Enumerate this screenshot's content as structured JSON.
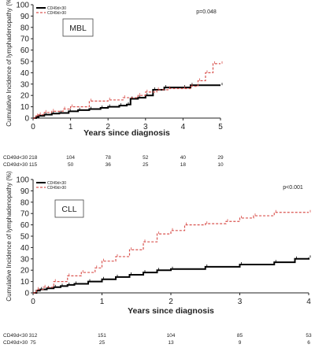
{
  "chart_data": [
    {
      "type": "line",
      "step": true,
      "panel_label": "MBL",
      "p_value": "p=0.048",
      "xlabel": "Years since diagnosis",
      "ylabel": "Cumulative Incidence of lymphadenopathy (%)",
      "xlim": [
        0,
        5
      ],
      "ylim": [
        0,
        100
      ],
      "xticks": [
        "0",
        "1",
        "2",
        "3",
        "4",
        "5"
      ],
      "yticks": [
        "0",
        "10",
        "20",
        "30",
        "40",
        "50",
        "60",
        "70",
        "80",
        "90",
        "100"
      ],
      "legend_position": "top-left",
      "grid": false,
      "series": [
        {
          "name": "CD49d<30",
          "color": "#000000",
          "style": "solid",
          "x": [
            0,
            0.08,
            0.15,
            0.3,
            0.5,
            0.7,
            0.95,
            1.2,
            1.5,
            1.8,
            2.0,
            2.3,
            2.5,
            2.6,
            2.8,
            3.0,
            3.2,
            3.5,
            4.0,
            4.2,
            5.0
          ],
          "y": [
            0,
            1,
            2,
            3,
            4,
            4.5,
            6,
            7,
            8,
            9,
            10,
            11,
            12,
            17,
            18,
            20,
            25,
            27,
            27,
            29,
            29
          ]
        },
        {
          "name": "CD49d>30",
          "color": "#d9534f",
          "style": "dashed",
          "x": [
            0,
            0.08,
            0.15,
            0.3,
            0.5,
            0.8,
            1.0,
            1.5,
            2.0,
            2.4,
            2.8,
            3.0,
            3.3,
            3.6,
            4.0,
            4.2,
            4.4,
            4.6,
            4.8,
            5.0
          ],
          "y": [
            0,
            2,
            3,
            5,
            6,
            8,
            10,
            15,
            16,
            18,
            20,
            23,
            25,
            26,
            26,
            28,
            33,
            40,
            48,
            48
          ]
        }
      ],
      "risk_table": [
        {
          "label": "CD49d<30",
          "values": [
            "218",
            "104",
            "78",
            "52",
            "40",
            "29"
          ]
        },
        {
          "label": "CD49d>30",
          "values": [
            "115",
            "50",
            "36",
            "25",
            "18",
            "10"
          ]
        }
      ]
    },
    {
      "type": "line",
      "step": true,
      "panel_label": "CLL",
      "p_value": "p<0.001",
      "xlabel": "Years since diagnosis",
      "ylabel": "Cumulative Incidence of lymphadenopathy (%)",
      "xlim": [
        0,
        4
      ],
      "ylim": [
        0,
        100
      ],
      "xticks": [
        "0",
        "1",
        "2",
        "3",
        "4"
      ],
      "yticks": [
        "0",
        "10",
        "20",
        "30",
        "40",
        "50",
        "60",
        "70",
        "80",
        "90",
        "100"
      ],
      "legend_position": "top-left",
      "grid": false,
      "series": [
        {
          "name": "CD49d<30",
          "color": "#000000",
          "style": "solid",
          "x": [
            0,
            0.05,
            0.1,
            0.2,
            0.3,
            0.4,
            0.5,
            0.6,
            0.8,
            1.0,
            1.2,
            1.4,
            1.6,
            1.8,
            2.0,
            2.5,
            3.0,
            3.5,
            3.8,
            4.0
          ],
          "y": [
            0,
            2,
            3,
            4,
            5,
            6,
            7,
            8,
            10,
            12,
            14,
            16,
            18,
            20,
            21,
            23,
            25,
            27,
            30,
            31
          ]
        },
        {
          "name": "CD49d>30",
          "color": "#d9534f",
          "style": "dashed",
          "x": [
            0,
            0.05,
            0.15,
            0.3,
            0.5,
            0.7,
            0.9,
            1.0,
            1.2,
            1.4,
            1.6,
            1.8,
            2.0,
            2.2,
            2.5,
            2.8,
            3.0,
            3.2,
            3.5,
            4.0
          ],
          "y": [
            0,
            3,
            5,
            10,
            15,
            18,
            22,
            28,
            32,
            38,
            45,
            52,
            55,
            60,
            61,
            63,
            66,
            68,
            71,
            71
          ]
        }
      ],
      "risk_table": [
        {
          "label": "CD49d<30",
          "values": [
            "312",
            "151",
            "104",
            "85",
            "53"
          ]
        },
        {
          "label": "CD49d>30",
          "values": [
            "75",
            "25",
            "13",
            "9",
            "6"
          ]
        }
      ]
    }
  ]
}
